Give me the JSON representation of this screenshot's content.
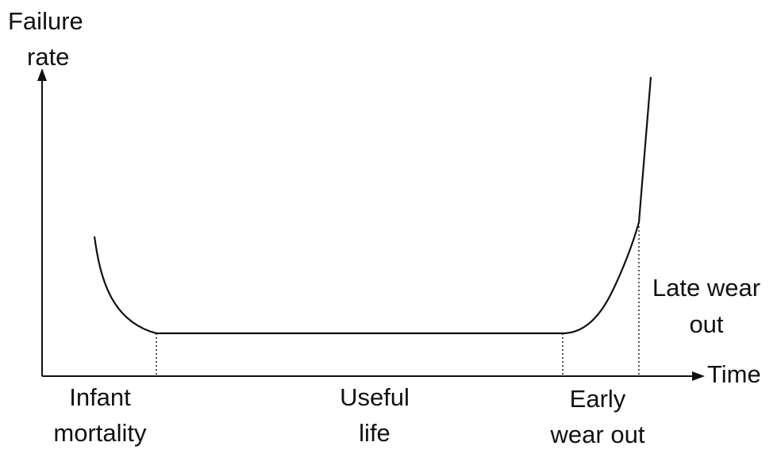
{
  "y_axis_label": {
    "line1": "Failure",
    "line2": "rate"
  },
  "x_axis_label": "Time",
  "phases": [
    {
      "line1": "Infant",
      "line2": "mortality"
    },
    {
      "line1": "Useful",
      "line2": "life"
    },
    {
      "line1": "Early",
      "line2": "wear out"
    },
    {
      "line1": "Late wear",
      "line2": "out"
    }
  ],
  "colors": {
    "ink": "#111111",
    "background": "#ffffff"
  }
}
